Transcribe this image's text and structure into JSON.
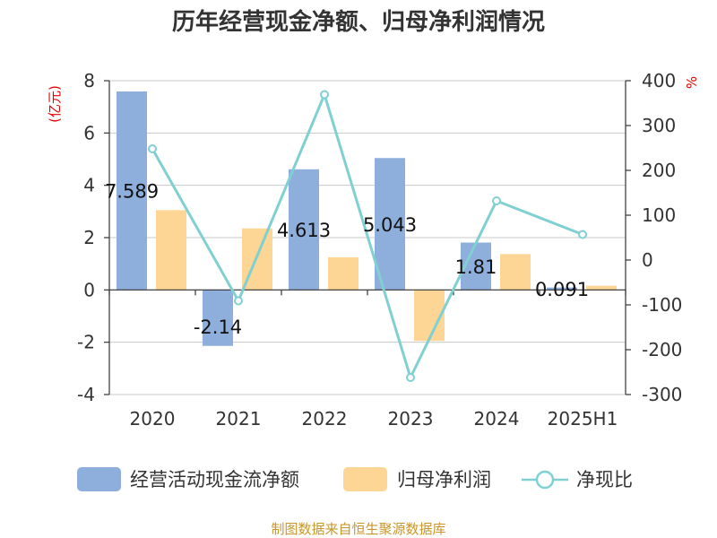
{
  "chart_data": {
    "type": "bar",
    "title": "历年经营现金净额、归母净利润情况",
    "categories": [
      "2020",
      "2021",
      "2022",
      "2023",
      "2024",
      "2025H1"
    ],
    "y_left": {
      "unit": "(亿元)",
      "ylim": [
        -4,
        8
      ],
      "ticks": [
        "-4",
        "-2",
        "0",
        "2",
        "4",
        "6",
        "8"
      ]
    },
    "y_right": {
      "unit": "%",
      "ylim": [
        -300,
        400
      ],
      "ticks": [
        "-300",
        "-200",
        "-100",
        "0",
        "100",
        "200",
        "300",
        "400"
      ]
    },
    "series": [
      {
        "name": "经营活动现金流净额",
        "kind": "bar",
        "axis": "left",
        "color": "#8eaedc",
        "values": [
          7.589,
          -2.14,
          4.613,
          5.043,
          1.81,
          0.091
        ],
        "labels": [
          "7.589",
          "-2.14",
          "4.613",
          "5.043",
          "1.81",
          "0.091"
        ]
      },
      {
        "name": "归母净利润",
        "kind": "bar",
        "axis": "left",
        "color": "#fdd595",
        "values": [
          3.05,
          2.35,
          1.25,
          -1.95,
          1.37,
          0.16
        ]
      },
      {
        "name": "净现比",
        "kind": "line",
        "axis": "right",
        "color": "#80d0d2",
        "values": [
          248,
          -91,
          369,
          -262,
          132,
          57
        ]
      }
    ],
    "grid": true,
    "legend_position": "bottom"
  },
  "source_text": "制图数据来自恒生聚源数据库"
}
